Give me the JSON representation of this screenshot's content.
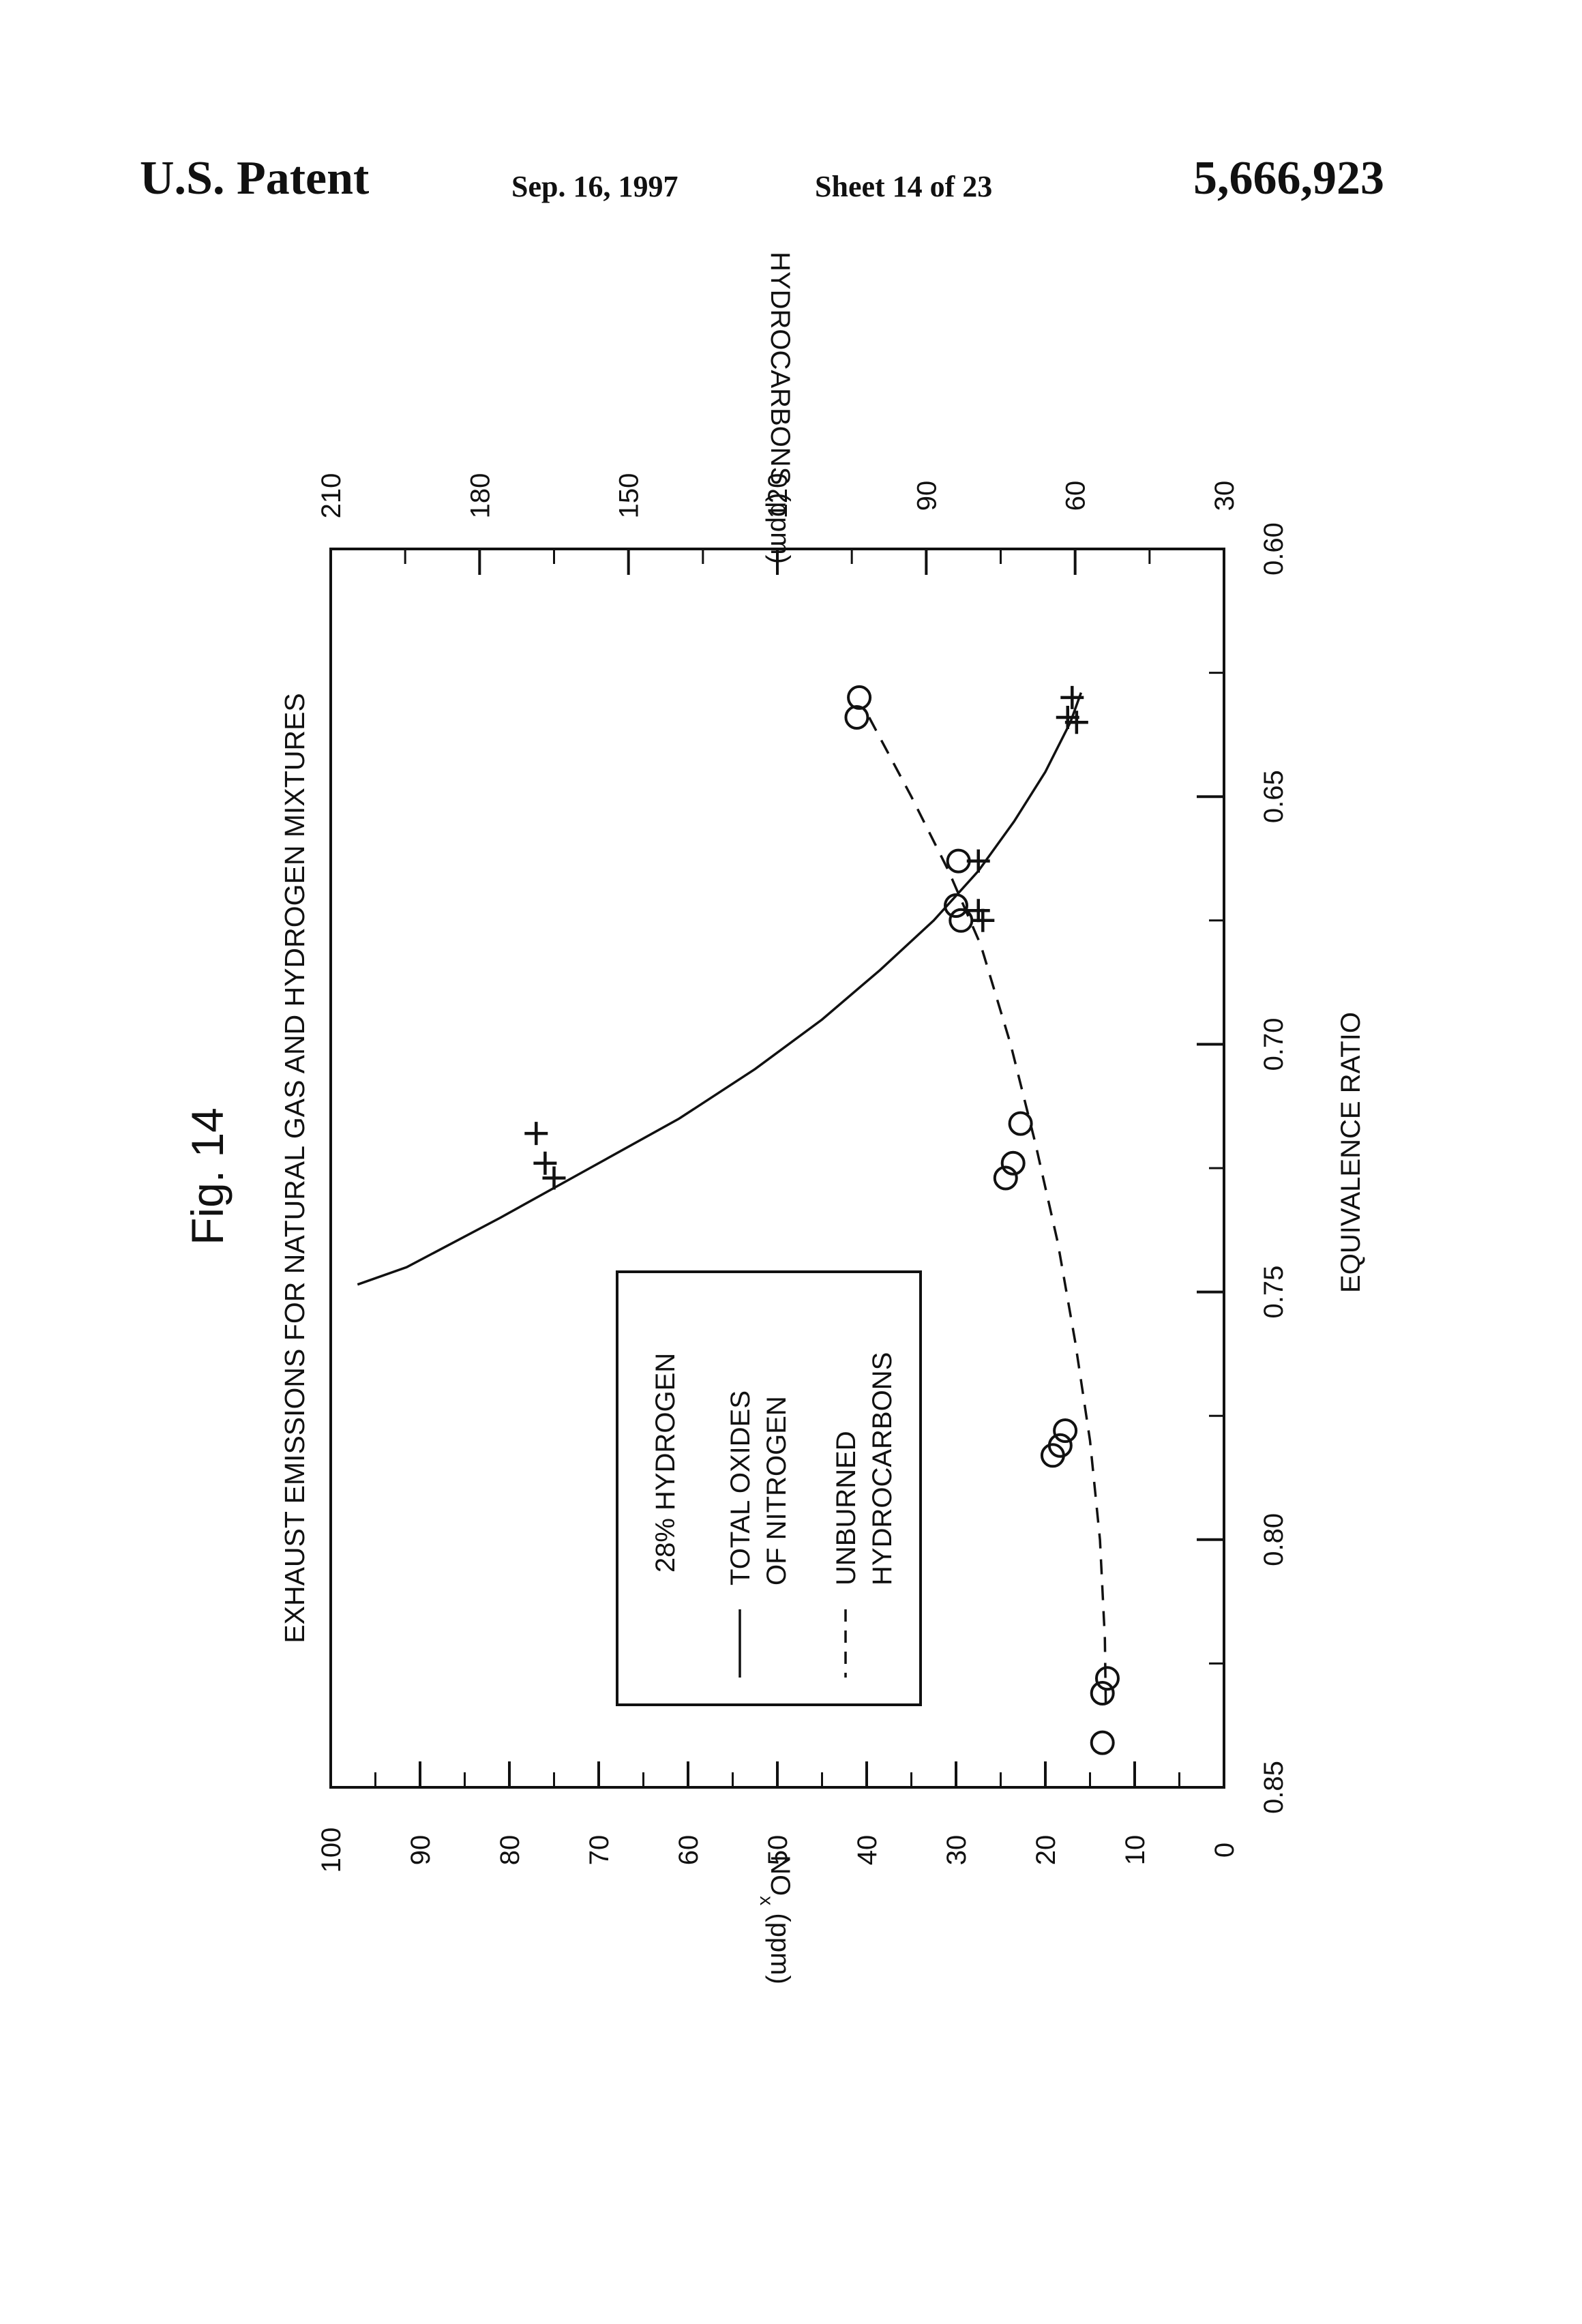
{
  "header": {
    "patent_label": "U.S. Patent",
    "date": "Sep. 16, 1997",
    "sheet": "Sheet 14 of 23",
    "patent_number": "5,666,923"
  },
  "figure_label": "Fig. 14",
  "chart_data": {
    "type": "scatter",
    "title": "EXHAUST EMISSIONS FOR NATURAL GAS AND HYDROGEN MIXTURES",
    "xlabel": "EQUIVALENCE RATIO",
    "ylabel_left": "NOx (ppm)",
    "ylabel_right": "HYDROCARBONS (ppm)",
    "xlim": [
      0.6,
      0.85
    ],
    "ylim_left": [
      0,
      100
    ],
    "ylim_right": [
      30,
      210
    ],
    "x_ticks": [
      "0.60",
      "0.65",
      "0.70",
      "0.75",
      "0.80",
      "0.85"
    ],
    "y_left_ticks": [
      "0",
      "10",
      "20",
      "30",
      "40",
      "50",
      "60",
      "70",
      "80",
      "90",
      "100"
    ],
    "y_right_ticks": [
      "30",
      "60",
      "90",
      "120",
      "150",
      "180",
      "210"
    ],
    "grid": false,
    "legend": {
      "title": "28% HYDROGEN",
      "entries": [
        {
          "style": "solid",
          "label_line1": "TOTAL OXIDES",
          "label_line2": "OF NITROGEN"
        },
        {
          "style": "dashed",
          "label_line1": "UNBURNED",
          "label_line2": "HYDROCARBONS"
        }
      ]
    },
    "series": [
      {
        "marker": "plus",
        "axis": "left",
        "points": [
          [
            0.63,
            17.0
          ],
          [
            0.634,
            17.5
          ],
          [
            0.635,
            16.5
          ],
          [
            0.663,
            27.5
          ],
          [
            0.673,
            27.5
          ],
          [
            0.675,
            27.0
          ],
          [
            0.718,
            77.0
          ],
          [
            0.724,
            76.0
          ],
          [
            0.727,
            75.0
          ]
        ]
      },
      {
        "marker": "circle",
        "axis": "right",
        "points": [
          [
            0.63,
            103.5
          ],
          [
            0.634,
            104.0
          ],
          [
            0.663,
            83.5
          ],
          [
            0.672,
            84.0
          ],
          [
            0.675,
            83.0
          ],
          [
            0.716,
            71.0
          ],
          [
            0.724,
            72.5
          ],
          [
            0.727,
            74.0
          ],
          [
            0.778,
            62.0
          ],
          [
            0.781,
            63.0
          ],
          [
            0.783,
            64.5
          ],
          [
            0.828,
            53.5
          ],
          [
            0.831,
            54.5
          ],
          [
            0.841,
            54.5
          ]
        ]
      }
    ],
    "curves": [
      {
        "style": "solid",
        "axis": "left",
        "points": [
          [
            0.629,
            16.0
          ],
          [
            0.635,
            17.2
          ],
          [
            0.645,
            20.0
          ],
          [
            0.655,
            23.5
          ],
          [
            0.665,
            27.5
          ],
          [
            0.675,
            32.5
          ],
          [
            0.685,
            38.5
          ],
          [
            0.695,
            45.0
          ],
          [
            0.705,
            52.5
          ],
          [
            0.715,
            61.0
          ],
          [
            0.725,
            71.0
          ],
          [
            0.735,
            81.0
          ],
          [
            0.745,
            91.5
          ],
          [
            0.7485,
            97.0
          ]
        ]
      },
      {
        "style": "dashed",
        "axis": "right",
        "points": [
          [
            0.634,
            101.5
          ],
          [
            0.65,
            93.0
          ],
          [
            0.665,
            85.5
          ],
          [
            0.68,
            79.0
          ],
          [
            0.7,
            73.0
          ],
          [
            0.72,
            68.0
          ],
          [
            0.74,
            63.5
          ],
          [
            0.76,
            60.0
          ],
          [
            0.78,
            57.0
          ],
          [
            0.8,
            55.0
          ],
          [
            0.82,
            54.0
          ],
          [
            0.835,
            53.8
          ]
        ]
      }
    ]
  }
}
